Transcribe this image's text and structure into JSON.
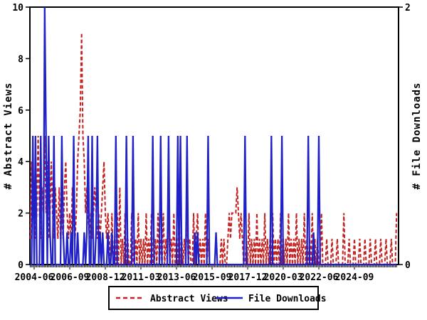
{
  "page": {
    "background": "#ffffff",
    "frame_color": "#000000"
  },
  "chart_data": {
    "type": "line",
    "title": "",
    "x_start_month": "2004-03",
    "months_total": 279,
    "x_major_ticks": [
      {
        "m": 3,
        "label": "2004-06"
      },
      {
        "m": 30,
        "label": "2006-09"
      },
      {
        "m": 57,
        "label": "2008-12"
      },
      {
        "m": 84,
        "label": "2011-03"
      },
      {
        "m": 111,
        "label": "2013-06"
      },
      {
        "m": 138,
        "label": "2015-09"
      },
      {
        "m": 165,
        "label": "2017-12"
      },
      {
        "m": 192,
        "label": "2020-03"
      },
      {
        "m": 219,
        "label": "2022-06"
      },
      {
        "m": 246,
        "label": "2024-09"
      }
    ],
    "y_left": {
      "label": "# Abstract Views",
      "min": 0,
      "max": 10,
      "ticks": [
        0,
        2,
        4,
        6,
        8,
        10
      ]
    },
    "y_right": {
      "label": "# File Downloads",
      "min": 0,
      "max": 2,
      "ticks": [
        0,
        2
      ]
    },
    "grid": false,
    "legend": {
      "position": "bottom-center",
      "entries": [
        "Abstract Views",
        "File Downloads"
      ]
    },
    "series": [
      {
        "name": "Abstract Views",
        "color": "#c42121",
        "style": "dashed",
        "axis": "left",
        "points": [
          [
            0,
            1
          ],
          [
            1,
            4
          ],
          [
            2,
            2
          ],
          [
            3,
            3
          ],
          [
            4,
            1
          ],
          [
            5,
            2
          ],
          [
            6,
            5
          ],
          [
            7,
            2
          ],
          [
            8,
            1
          ],
          [
            9,
            3
          ],
          [
            10,
            2
          ],
          [
            11,
            5
          ],
          [
            12,
            2
          ],
          [
            13,
            4
          ],
          [
            14,
            1
          ],
          [
            15,
            2
          ],
          [
            16,
            4
          ],
          [
            17,
            2
          ],
          [
            18,
            1
          ],
          [
            19,
            3
          ],
          [
            20,
            2
          ],
          [
            21,
            1
          ],
          [
            22,
            3
          ],
          [
            23,
            1
          ],
          [
            24,
            2
          ],
          [
            25,
            1
          ],
          [
            26,
            3
          ],
          [
            27,
            4
          ],
          [
            28,
            2
          ],
          [
            29,
            1
          ],
          [
            30,
            2
          ],
          [
            31,
            1
          ],
          [
            32,
            3
          ],
          [
            33,
            2
          ],
          [
            34,
            1
          ],
          [
            35,
            2
          ],
          [
            36,
            4
          ],
          [
            37,
            5
          ],
          [
            38,
            6
          ],
          [
            39,
            9
          ],
          [
            40,
            5
          ],
          [
            41,
            4
          ],
          [
            42,
            2
          ],
          [
            43,
            3
          ],
          [
            44,
            2
          ],
          [
            45,
            1
          ],
          [
            46,
            2
          ],
          [
            47,
            1
          ],
          [
            48,
            2
          ],
          [
            49,
            3
          ],
          [
            50,
            2
          ],
          [
            51,
            1
          ],
          [
            52,
            2
          ],
          [
            53,
            1
          ],
          [
            54,
            2
          ],
          [
            55,
            3
          ],
          [
            56,
            4
          ],
          [
            57,
            2
          ],
          [
            58,
            1
          ],
          [
            59,
            2
          ],
          [
            60,
            1
          ],
          [
            62,
            2
          ],
          [
            64,
            1
          ],
          [
            66,
            2
          ],
          [
            68,
            3
          ],
          [
            70,
            1
          ],
          [
            72,
            2
          ],
          [
            74,
            1
          ],
          [
            77,
            2
          ],
          [
            80,
            1
          ],
          [
            82,
            2
          ],
          [
            84,
            1
          ],
          [
            86,
            1
          ],
          [
            88,
            2
          ],
          [
            90,
            1
          ],
          [
            92,
            2
          ],
          [
            95,
            1
          ],
          [
            97,
            2
          ],
          [
            99,
            1
          ],
          [
            101,
            2
          ],
          [
            103,
            1
          ],
          [
            105,
            2
          ],
          [
            107,
            1
          ],
          [
            109,
            2
          ],
          [
            111,
            1
          ],
          [
            113,
            2
          ],
          [
            115,
            1
          ],
          [
            117,
            1
          ],
          [
            119,
            2
          ],
          [
            121,
            1
          ],
          [
            124,
            2
          ],
          [
            126,
            1
          ],
          [
            127,
            2
          ],
          [
            129,
            1
          ],
          [
            131,
            1
          ],
          [
            133,
            2
          ],
          [
            135,
            1
          ],
          [
            145,
            1
          ],
          [
            147,
            1
          ],
          [
            150,
            1
          ],
          [
            151,
            2
          ],
          [
            152,
            1
          ],
          [
            153,
            2
          ],
          [
            154,
            2
          ],
          [
            155,
            2
          ],
          [
            156,
            2
          ],
          [
            157,
            3
          ],
          [
            158,
            2
          ],
          [
            159,
            1
          ],
          [
            160,
            2
          ],
          [
            161,
            1
          ],
          [
            164,
            1
          ],
          [
            166,
            2
          ],
          [
            168,
            1
          ],
          [
            170,
            1
          ],
          [
            172,
            2
          ],
          [
            174,
            1
          ],
          [
            176,
            1
          ],
          [
            178,
            2
          ],
          [
            180,
            1
          ],
          [
            182,
            1
          ],
          [
            184,
            2
          ],
          [
            186,
            1
          ],
          [
            188,
            1
          ],
          [
            190,
            2
          ],
          [
            192,
            1
          ],
          [
            194,
            1
          ],
          [
            196,
            2
          ],
          [
            198,
            1
          ],
          [
            200,
            1
          ],
          [
            202,
            2
          ],
          [
            204,
            1
          ],
          [
            206,
            1
          ],
          [
            208,
            2
          ],
          [
            210,
            1
          ],
          [
            212,
            1
          ],
          [
            214,
            2
          ],
          [
            216,
            1
          ],
          [
            218,
            1
          ],
          [
            221,
            2
          ],
          [
            225,
            1
          ],
          [
            229,
            1
          ],
          [
            233,
            1
          ],
          [
            238,
            2
          ],
          [
            242,
            1
          ],
          [
            246,
            1
          ],
          [
            250,
            1
          ],
          [
            254,
            1
          ],
          [
            258,
            1
          ],
          [
            262,
            1
          ],
          [
            266,
            1
          ],
          [
            270,
            1
          ],
          [
            274,
            1
          ],
          [
            278,
            2
          ]
        ]
      },
      {
        "name": "File Downloads",
        "color": "#2121c8",
        "style": "solid",
        "axis": "right",
        "points": [
          [
            2,
            1
          ],
          [
            4,
            1
          ],
          [
            8,
            1
          ],
          [
            11,
            2
          ],
          [
            12,
            1
          ],
          [
            14,
            1
          ],
          [
            15,
            0.25
          ],
          [
            18,
            1
          ],
          [
            24,
            1
          ],
          [
            25,
            0.25
          ],
          [
            28,
            0.25
          ],
          [
            31,
            0.25
          ],
          [
            33,
            1
          ],
          [
            36,
            0.25
          ],
          [
            41,
            0.25
          ],
          [
            43,
            0.25
          ],
          [
            44,
            1
          ],
          [
            47,
            1
          ],
          [
            50,
            0.25
          ],
          [
            51,
            1
          ],
          [
            53,
            0.25
          ],
          [
            55,
            0.25
          ],
          [
            59,
            0.25
          ],
          [
            62,
            0.25
          ],
          [
            65,
            1
          ],
          [
            73,
            1
          ],
          [
            78,
            1
          ],
          [
            93,
            1
          ],
          [
            99,
            1
          ],
          [
            105,
            1
          ],
          [
            112,
            1
          ],
          [
            114,
            1
          ],
          [
            119,
            1
          ],
          [
            125,
            0.25
          ],
          [
            127,
            0.25
          ],
          [
            135,
            1
          ],
          [
            141,
            0.25
          ],
          [
            163,
            1
          ],
          [
            183,
            1
          ],
          [
            191,
            1
          ],
          [
            211,
            1
          ],
          [
            215,
            0.25
          ],
          [
            219,
            1
          ]
        ]
      }
    ]
  }
}
